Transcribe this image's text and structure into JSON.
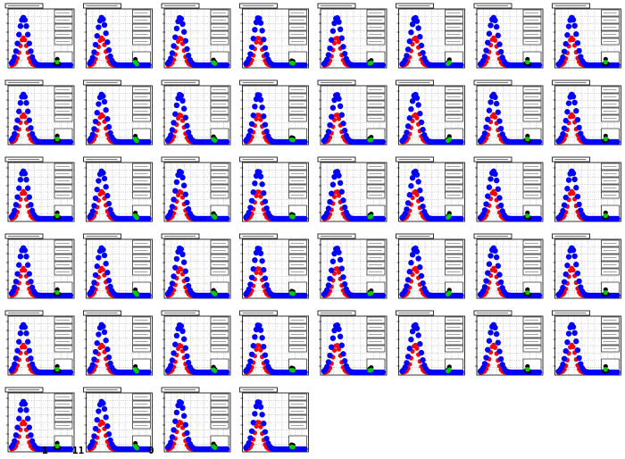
{
  "figure": {
    "rows": 6,
    "columns": 8,
    "panel_count": 44,
    "stray_labels": [
      "1",
      "11",
      "0"
    ]
  },
  "colors": {
    "background": "#ffffff",
    "frame": "#000000",
    "grid": "#000000",
    "series_blue": "#0000ff",
    "series_red": "#ff0000",
    "series_green": "#00cc00",
    "series_black": "#000000"
  },
  "chart_data": {
    "type": "scatter",
    "panels": 44,
    "x": [
      0,
      1,
      2,
      3,
      4,
      5,
      6,
      7,
      8,
      9,
      10,
      11,
      12,
      13,
      14,
      15,
      16,
      17,
      18,
      19,
      20,
      21,
      22,
      23,
      24,
      25,
      26,
      27,
      28,
      29,
      30,
      31,
      32,
      33,
      34,
      35,
      36,
      37,
      38,
      39,
      40
    ],
    "xlim": [
      0,
      40
    ],
    "ylim": [
      0,
      1
    ],
    "grid": true,
    "legend_placement": "top-right",
    "series": [
      {
        "color": "blue",
        "peak_x": 8,
        "peak_height": 0.95,
        "width": 3.2
      },
      {
        "color": "red",
        "peak_x": 8,
        "peak_height": 0.55,
        "width": 2.4
      },
      {
        "color": "black",
        "peak_x": 31,
        "peak_height": 0.12,
        "width": 0.6
      },
      {
        "color": "green",
        "peak_x": 31,
        "peak_height": 0.06,
        "width": 0.6
      }
    ]
  }
}
